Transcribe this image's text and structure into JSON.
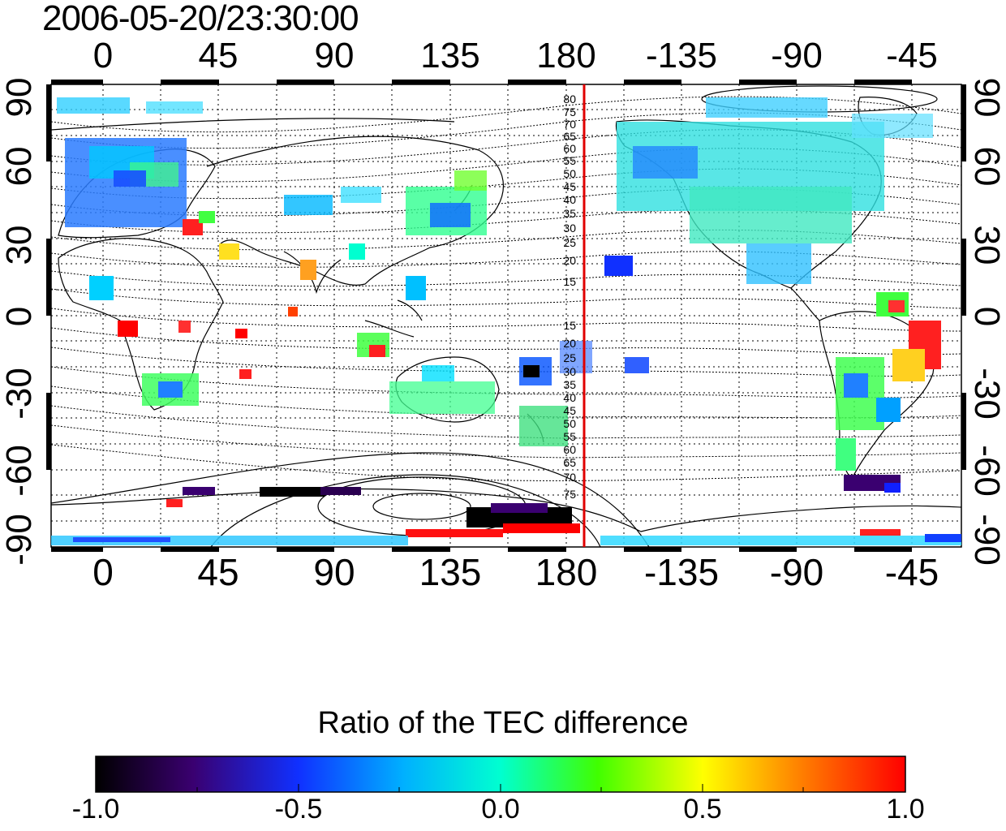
{
  "title": "2006-05-20/23:30:00",
  "axes": {
    "top_ticks": [
      "0",
      "45",
      "90",
      "135",
      "180",
      "-135",
      "-90",
      "-45"
    ],
    "bottom_ticks": [
      "0",
      "45",
      "90",
      "135",
      "180",
      "-135",
      "-90",
      "-45"
    ],
    "left_ticks": [
      "90",
      "60",
      "30",
      "0",
      "-30",
      "-60",
      "-90"
    ],
    "right_ticks": [
      "90",
      "60",
      "30",
      "0",
      "-30",
      "-60",
      "-90"
    ]
  },
  "contour_labels": {
    "north": [
      "80",
      "75",
      "70",
      "65",
      "60",
      "55",
      "50",
      "45",
      "40",
      "35",
      "30",
      "25",
      "20",
      "15"
    ],
    "south": [
      "15",
      "20",
      "25",
      "30",
      "35",
      "40",
      "45",
      "50",
      "55",
      "60",
      "65",
      "70",
      "75"
    ]
  },
  "colorbar": {
    "title": "Ratio of the TEC difference",
    "ticks": [
      "-1.0",
      "-0.5",
      "0.0",
      "0.5",
      "1.0"
    ],
    "colors": [
      "#000000",
      "#3a0070",
      "#0030ff",
      "#00e0ff",
      "#00ff40",
      "#ffff00",
      "#ff8000",
      "#ff0000"
    ]
  },
  "marker_line_color": "#e00000",
  "map": {
    "projection": "equirectangular",
    "lon_center": 180,
    "lat_range": [
      -90,
      90
    ]
  }
}
